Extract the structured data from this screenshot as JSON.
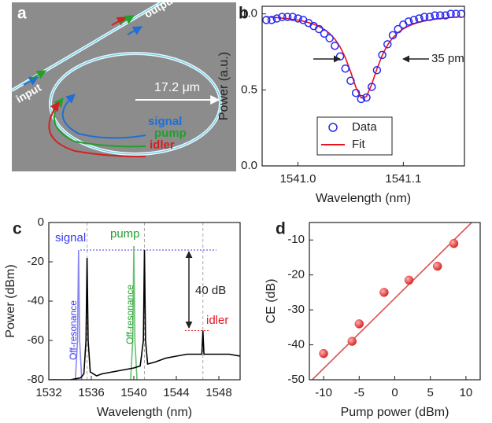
{
  "diagram": {
    "label": "a",
    "waveguide": [
      "output",
      "input"
    ],
    "radius": "17.2 μm",
    "beams": [
      {
        "text": "signal",
        "color": "#1f6fd6"
      },
      {
        "text": "pump",
        "color": "#22a02c"
      },
      {
        "text": "idler",
        "color": "#d61f1f"
      }
    ]
  },
  "chart_data": [
    {
      "type": "scatter",
      "label": "b",
      "xlabel": "Wavelength (nm)",
      "ylabel": "Power (a.u.)",
      "xlim": [
        1540.966,
        1541.158
      ],
      "xticks": [
        {
          "value": 1541.0,
          "label": "1541.0"
        },
        {
          "value": 1541.1,
          "label": "1541.1"
        }
      ],
      "ylim": [
        0,
        1.05
      ],
      "yticks": [
        {
          "value": 0,
          "label": "0.0"
        },
        {
          "value": 0.5,
          "label": "0.5"
        },
        {
          "value": 1.0,
          "label": "1.0"
        }
      ],
      "legend": "lower-left",
      "grid": false,
      "annotations": [
        {
          "text": "35 pm",
          "color": "#222"
        }
      ],
      "series": [
        {
          "name": "Data",
          "type": "scatter",
          "hollow": true,
          "color": "#2a2af0",
          "x": [
            1540.97,
            1540.975,
            1540.98,
            1540.985,
            1540.99,
            1540.995,
            1541.0,
            1541.005,
            1541.01,
            1541.015,
            1541.02,
            1541.025,
            1541.03,
            1541.035,
            1541.04,
            1541.045,
            1541.05,
            1541.055,
            1541.06,
            1541.065,
            1541.07,
            1541.075,
            1541.08,
            1541.085,
            1541.09,
            1541.095,
            1541.1,
            1541.105,
            1541.11,
            1541.115,
            1541.12,
            1541.125,
            1541.13,
            1541.135,
            1541.14,
            1541.145,
            1541.15,
            1541.155
          ],
          "values": [
            0.96,
            0.96,
            0.97,
            0.98,
            0.98,
            0.98,
            0.97,
            0.96,
            0.94,
            0.92,
            0.9,
            0.87,
            0.84,
            0.79,
            0.72,
            0.64,
            0.56,
            0.48,
            0.44,
            0.45,
            0.52,
            0.63,
            0.73,
            0.8,
            0.86,
            0.9,
            0.93,
            0.95,
            0.96,
            0.97,
            0.98,
            0.98,
            0.99,
            0.99,
            0.99,
            1.0,
            1.0,
            1.0
          ]
        },
        {
          "name": "Fit",
          "type": "line",
          "color": "#e8141e",
          "x": [
            1540.97,
            1540.975,
            1540.98,
            1540.985,
            1540.99,
            1540.995,
            1541.0,
            1541.005,
            1541.01,
            1541.015,
            1541.02,
            1541.025,
            1541.03,
            1541.035,
            1541.04,
            1541.045,
            1541.05,
            1541.055,
            1541.06,
            1541.065,
            1541.07,
            1541.075,
            1541.08,
            1541.085,
            1541.09,
            1541.095,
            1541.1,
            1541.105,
            1541.11,
            1541.115,
            1541.12,
            1541.125,
            1541.13,
            1541.135,
            1541.14,
            1541.145,
            1541.15,
            1541.155
          ],
          "values": [
            0.98,
            0.978,
            0.976,
            0.972,
            0.969,
            0.964,
            0.959,
            0.952,
            0.943,
            0.932,
            0.917,
            0.898,
            0.871,
            0.834,
            0.783,
            0.712,
            0.619,
            0.517,
            0.447,
            0.456,
            0.537,
            0.639,
            0.728,
            0.795,
            0.843,
            0.877,
            0.902,
            0.92,
            0.934,
            0.945,
            0.953,
            0.96,
            0.965,
            0.97,
            0.973,
            0.976,
            0.979,
            0.981
          ]
        }
      ]
    },
    {
      "type": "line",
      "label": "c",
      "xlabel": "Wavelength (nm)",
      "ylabel": "Power (dBm)",
      "xlim": [
        1532,
        1550
      ],
      "xticks": [
        1532,
        1536,
        1540,
        1544,
        1548
      ],
      "ylim": [
        -80,
        0
      ],
      "yticks": [
        0,
        -20,
        -40,
        -60,
        -80
      ],
      "grid": false,
      "vlines": [
        {
          "value": 1535.6,
          "color": "#aaaaaa"
        },
        {
          "value": 1541.0,
          "color": "#aaaaaa"
        },
        {
          "value": 1546.5,
          "color": "#aaaaaa"
        }
      ],
      "hlines": [
        {
          "value": -14,
          "color": "#3a3af0"
        },
        {
          "value": -55,
          "color": "#e8141e"
        }
      ],
      "annotations": [
        {
          "text": "signal",
          "color": "#3a3af0"
        },
        {
          "text": "pump",
          "color": "#22a02c"
        },
        {
          "text": "40 dB",
          "color": "#222"
        },
        {
          "text": "idler",
          "color": "#e8141e"
        },
        {
          "text": "Off-resonance",
          "color": "#3a3af0"
        },
        {
          "text": "Off-resonance",
          "color": "#22a02c"
        }
      ],
      "series": [
        {
          "type": "line",
          "color": "#8888f0",
          "x": [
            1534.5,
            1534.7,
            1534.8,
            1534.9,
            1535.1
          ],
          "values": [
            -80,
            -60,
            -14,
            -60,
            -80
          ]
        },
        {
          "type": "line",
          "color": "#66c070",
          "x": [
            1539.7,
            1539.9,
            1540.0,
            1540.1,
            1540.3
          ],
          "values": [
            -80,
            -60,
            -12,
            -60,
            -80
          ]
        },
        {
          "type": "line",
          "color": "#000000",
          "x": [
            1532,
            1533,
            1534,
            1535,
            1535.3,
            1535.5,
            1535.6,
            1535.7,
            1535.9,
            1536.5,
            1537,
            1538,
            1539,
            1540,
            1540.6,
            1540.9,
            1541.0,
            1541.1,
            1541.3,
            1542,
            1543,
            1544,
            1545,
            1546,
            1546.4,
            1546.5,
            1546.6,
            1547,
            1548,
            1549,
            1550
          ],
          "values": [
            -80,
            -80,
            -80,
            -79,
            -77,
            -60,
            -18,
            -60,
            -76,
            -78,
            -77,
            -76,
            -75,
            -74,
            -73,
            -60,
            -14,
            -60,
            -72,
            -71,
            -69,
            -68,
            -67,
            -67,
            -67,
            -55,
            -67,
            -67,
            -67,
            -67,
            -68
          ]
        }
      ]
    },
    {
      "type": "scatter",
      "label": "d",
      "xlabel": "Pump power (dBm)",
      "ylabel": "CE (dB)",
      "xlim": [
        -12,
        12
      ],
      "xticks": [
        -10,
        -5,
        0,
        5,
        10
      ],
      "ylim": [
        -50,
        -5
      ],
      "yticks": [
        -10,
        -20,
        -30,
        -40,
        -50
      ],
      "grid": false,
      "series": [
        {
          "type": "scatter",
          "color": "#e83a3a",
          "x": [
            -10,
            -6,
            -5,
            -1.5,
            2,
            6,
            8.3
          ],
          "values": [
            -42.5,
            -39,
            -34,
            -25,
            -21.5,
            -17.5,
            -11
          ]
        },
        {
          "type": "line",
          "color": "#e05050",
          "x": [
            -11.6,
            10.8
          ],
          "values": [
            -50,
            -5
          ]
        }
      ]
    }
  ]
}
